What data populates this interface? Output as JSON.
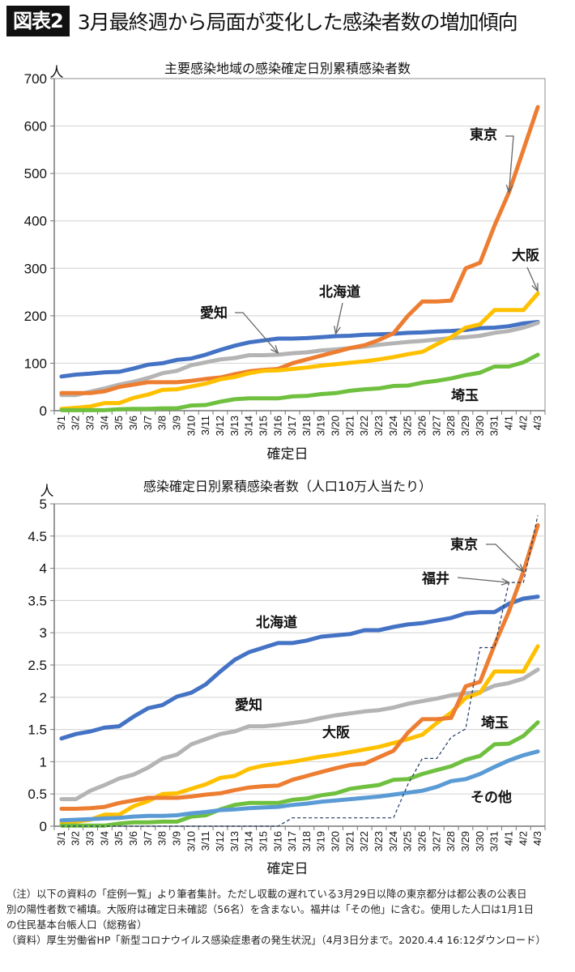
{
  "header": {
    "badge": "図表2",
    "title": "3月最終週から局面が変化した感染者数の増加傾向"
  },
  "chart_data": [
    {
      "type": "line",
      "title": "主要感染地域の感染確定日別累積感染者数",
      "ylabel": "人",
      "xlabel": "確定日",
      "ylim": [
        0,
        700
      ],
      "yticks": [
        0,
        100,
        200,
        300,
        400,
        500,
        600,
        700
      ],
      "grid": true,
      "x": [
        "3/1",
        "3/2",
        "3/3",
        "3/4",
        "3/5",
        "3/6",
        "3/7",
        "3/8",
        "3/9",
        "3/10",
        "3/11",
        "3/12",
        "3/13",
        "3/14",
        "3/15",
        "3/16",
        "3/17",
        "3/18",
        "3/19",
        "3/20",
        "3/21",
        "3/22",
        "3/23",
        "3/24",
        "3/25",
        "3/26",
        "3/27",
        "3/28",
        "3/29",
        "3/30",
        "3/31",
        "4/1",
        "4/2",
        "4/3"
      ],
      "series": [
        {
          "name": "北海道",
          "color": "#4472c4",
          "values": [
            72,
            76,
            78,
            81,
            82,
            89,
            97,
            100,
            107,
            110,
            118,
            128,
            137,
            144,
            148,
            152,
            152,
            153,
            155,
            157,
            158,
            160,
            161,
            162,
            164,
            165,
            167,
            168,
            170,
            174,
            175,
            178,
            184,
            187
          ]
        },
        {
          "name": "愛知",
          "color": "#b4b4b4",
          "values": [
            33,
            33,
            40,
            47,
            55,
            61,
            69,
            79,
            84,
            96,
            102,
            108,
            111,
            117,
            117,
            118,
            121,
            123,
            127,
            129,
            132,
            135,
            139,
            142,
            145,
            147,
            150,
            153,
            155,
            158,
            164,
            168,
            175,
            185
          ]
        },
        {
          "name": "東京",
          "color": "#ed7d31",
          "values": [
            37,
            37,
            37,
            41,
            50,
            55,
            60,
            60,
            60,
            63,
            67,
            70,
            77,
            83,
            86,
            88,
            100,
            108,
            116,
            124,
            132,
            138,
            149,
            163,
            200,
            230,
            230,
            232,
            300,
            312,
            390,
            460,
            550,
            640
          ]
        },
        {
          "name": "大阪",
          "color": "#ffc000",
          "values": [
            4,
            6,
            9,
            16,
            16,
            27,
            34,
            44,
            45,
            51,
            57,
            66,
            71,
            79,
            84,
            85,
            88,
            91,
            95,
            98,
            101,
            104,
            108,
            113,
            119,
            124,
            140,
            155,
            175,
            182,
            212,
            212,
            212,
            247
          ]
        },
        {
          "name": "埼玉",
          "color": "#70c040",
          "values": [
            1,
            1,
            1,
            1,
            3,
            4,
            4,
            5,
            5,
            11,
            12,
            19,
            24,
            26,
            26,
            26,
            30,
            31,
            35,
            37,
            42,
            45,
            47,
            52,
            53,
            59,
            63,
            68,
            75,
            80,
            93,
            93,
            102,
            118
          ]
        }
      ],
      "annotations": [
        {
          "text": "東京",
          "target": "東京"
        },
        {
          "text": "大阪",
          "target": "大阪"
        },
        {
          "text": "北海道",
          "target": "北海道"
        },
        {
          "text": "愛知",
          "target": "愛知"
        },
        {
          "text": "埼玉",
          "target": "埼玉"
        }
      ]
    },
    {
      "type": "line",
      "title": "感染確定日別累積感染者数（人口10万人当たり）",
      "ylabel": "人",
      "xlabel": "確定日",
      "ylim": [
        0,
        5
      ],
      "yticks": [
        0,
        0.5,
        1,
        1.5,
        2,
        2.5,
        3,
        3.5,
        4,
        4.5,
        5
      ],
      "grid": true,
      "x": [
        "3/1",
        "3/2",
        "3/3",
        "3/4",
        "3/5",
        "3/6",
        "3/7",
        "3/8",
        "3/9",
        "3/10",
        "3/11",
        "3/12",
        "3/13",
        "3/14",
        "3/15",
        "3/16",
        "3/17",
        "3/18",
        "3/19",
        "3/20",
        "3/21",
        "3/22",
        "3/23",
        "3/24",
        "3/25",
        "3/26",
        "3/27",
        "3/28",
        "3/29",
        "3/30",
        "3/31",
        "4/1",
        "4/2",
        "4/3"
      ],
      "series": [
        {
          "name": "北海道",
          "color": "#4472c4",
          "dashed": false,
          "values": [
            1.36,
            1.43,
            1.47,
            1.53,
            1.55,
            1.7,
            1.83,
            1.88,
            2.01,
            2.07,
            2.2,
            2.4,
            2.58,
            2.7,
            2.77,
            2.84,
            2.84,
            2.88,
            2.94,
            2.96,
            2.98,
            3.04,
            3.04,
            3.09,
            3.13,
            3.15,
            3.19,
            3.23,
            3.3,
            3.32,
            3.32,
            3.45,
            3.53,
            3.56
          ]
        },
        {
          "name": "愛知",
          "color": "#b4b4b4",
          "dashed": false,
          "values": [
            0.42,
            0.42,
            0.55,
            0.64,
            0.74,
            0.8,
            0.91,
            1.05,
            1.11,
            1.27,
            1.35,
            1.43,
            1.47,
            1.55,
            1.55,
            1.57,
            1.6,
            1.63,
            1.68,
            1.72,
            1.75,
            1.78,
            1.8,
            1.84,
            1.9,
            1.94,
            1.98,
            2.03,
            2.06,
            2.08,
            2.18,
            2.22,
            2.29,
            2.43
          ]
        },
        {
          "name": "大阪",
          "color": "#ffc000",
          "dashed": false,
          "values": [
            0.05,
            0.07,
            0.1,
            0.18,
            0.18,
            0.31,
            0.39,
            0.5,
            0.51,
            0.58,
            0.65,
            0.75,
            0.78,
            0.89,
            0.94,
            0.97,
            1.0,
            1.04,
            1.08,
            1.11,
            1.15,
            1.19,
            1.23,
            1.29,
            1.35,
            1.42,
            1.6,
            1.76,
            1.99,
            2.07,
            2.4,
            2.4,
            2.4,
            2.79
          ]
        },
        {
          "name": "東京",
          "color": "#ed7d31",
          "dashed": false,
          "values": [
            0.27,
            0.27,
            0.28,
            0.3,
            0.36,
            0.4,
            0.44,
            0.44,
            0.44,
            0.46,
            0.49,
            0.51,
            0.56,
            0.6,
            0.62,
            0.63,
            0.72,
            0.78,
            0.84,
            0.9,
            0.95,
            0.97,
            1.07,
            1.17,
            1.45,
            1.66,
            1.66,
            1.68,
            2.17,
            2.24,
            2.81,
            3.33,
            3.95,
            4.67
          ]
        },
        {
          "name": "埼玉",
          "color": "#70c040",
          "dashed": false,
          "values": [
            0.01,
            0.01,
            0.01,
            0.01,
            0.04,
            0.06,
            0.06,
            0.07,
            0.07,
            0.15,
            0.17,
            0.26,
            0.33,
            0.36,
            0.36,
            0.36,
            0.41,
            0.43,
            0.48,
            0.51,
            0.58,
            0.61,
            0.64,
            0.72,
            0.73,
            0.81,
            0.87,
            0.93,
            1.03,
            1.09,
            1.27,
            1.28,
            1.4,
            1.61
          ]
        },
        {
          "name": "その他",
          "color": "#5b9bd5",
          "dashed": false,
          "values": [
            0.09,
            0.1,
            0.11,
            0.12,
            0.13,
            0.15,
            0.16,
            0.16,
            0.17,
            0.2,
            0.22,
            0.25,
            0.26,
            0.28,
            0.29,
            0.3,
            0.33,
            0.35,
            0.38,
            0.4,
            0.42,
            0.44,
            0.46,
            0.49,
            0.52,
            0.55,
            0.61,
            0.7,
            0.73,
            0.81,
            0.92,
            1.02,
            1.1,
            1.16
          ]
        },
        {
          "name": "福井",
          "color": "#203864",
          "dashed": true,
          "values": [
            0,
            0,
            0,
            0,
            0,
            0,
            0,
            0,
            0,
            0,
            0,
            0,
            0,
            0,
            0,
            0,
            0.13,
            0.13,
            0.13,
            0.13,
            0.13,
            0.13,
            0.13,
            0.13,
            0.65,
            1.05,
            1.05,
            1.38,
            1.51,
            2.77,
            2.77,
            3.78,
            3.78,
            4.82
          ]
        }
      ],
      "annotations": [
        {
          "text": "東京",
          "target": "東京"
        },
        {
          "text": "福井",
          "target": "福井"
        },
        {
          "text": "北海道",
          "target": "北海道"
        },
        {
          "text": "愛知",
          "target": "愛知"
        },
        {
          "text": "大阪",
          "target": "大阪"
        },
        {
          "text": "埼玉",
          "target": "埼玉"
        },
        {
          "text": "その他",
          "target": "その他"
        }
      ]
    }
  ],
  "notes": [
    "（注）以下の資料の「症例一覧」より筆者集計。ただし収載の遅れている3月29日以降の東京都分は都公表の公表日",
    "別の陽性者数で補填。大阪府は確定日未確認（56名）を含まない。福井は「その他」に含む。使用した人口は1月1日",
    "の住民基本台帳人口（総務省）",
    "（資料）厚生労働省HP「新型コロナウイルス感染症患者の発生状況」（4月3日分まで。2020.4.4 16:12ダウンロード）"
  ]
}
